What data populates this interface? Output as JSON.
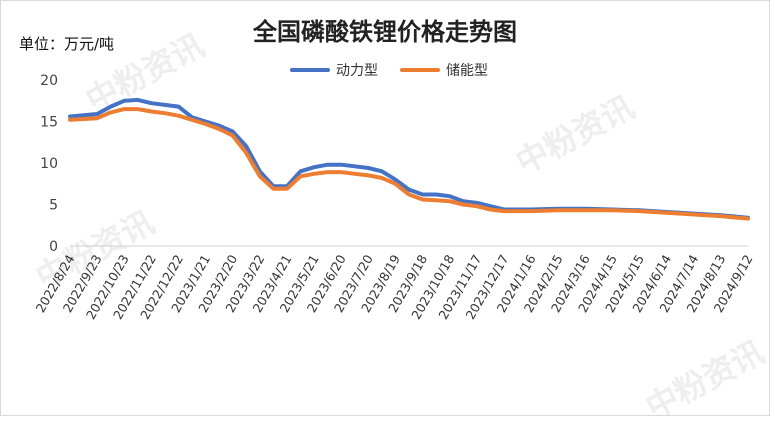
{
  "chart_data": {
    "type": "line",
    "title": "全国磷酸铁锂价格走势图",
    "unit_label": "单位：万元/吨",
    "ylim": [
      0,
      20
    ],
    "yticks": [
      0,
      5,
      10,
      15,
      20
    ],
    "x_tick_labels": [
      "2022/8/24",
      "2022/9/23",
      "2022/10/23",
      "2022/11/22",
      "2022/12/22",
      "2023/1/21",
      "2023/2/20",
      "2023/3/22",
      "2023/4/21",
      "2023/5/21",
      "2023/6/20",
      "2023/7/20",
      "2023/8/19",
      "2023/9/18",
      "2023/10/18",
      "2023/11/17",
      "2023/12/17",
      "2024/1/16",
      "2024/2/15",
      "2024/3/16",
      "2024/4/15",
      "2024/5/15",
      "2024/6/14",
      "2024/7/14",
      "2024/8/13",
      "2024/9/12"
    ],
    "x": [
      "2022/8/24",
      "2022/9/23",
      "2022/10/8",
      "2022/10/23",
      "2022/11/7",
      "2022/11/22",
      "2022/12/7",
      "2022/12/22",
      "2023/1/6",
      "2023/1/21",
      "2023/2/5",
      "2023/2/20",
      "2023/3/7",
      "2023/3/22",
      "2023/4/6",
      "2023/4/21",
      "2023/5/6",
      "2023/5/21",
      "2023/6/5",
      "2023/6/20",
      "2023/7/5",
      "2023/7/20",
      "2023/8/4",
      "2023/8/19",
      "2023/9/3",
      "2023/9/18",
      "2023/10/3",
      "2023/10/18",
      "2023/11/2",
      "2023/11/17",
      "2023/12/2",
      "2023/12/17",
      "2024/1/16",
      "2024/2/15",
      "2024/3/16",
      "2024/4/15",
      "2024/5/15",
      "2024/6/14",
      "2024/7/14",
      "2024/8/13",
      "2024/9/12"
    ],
    "series": [
      {
        "name": "动力型",
        "color": "#4472C4",
        "values": [
          15.6,
          15.9,
          16.8,
          17.5,
          17.6,
          17.2,
          17.0,
          16.8,
          15.5,
          15.0,
          14.5,
          13.8,
          12.0,
          9.0,
          7.2,
          7.2,
          9.0,
          9.5,
          9.8,
          9.8,
          9.6,
          9.4,
          9.0,
          8.0,
          6.8,
          6.2,
          6.2,
          6.0,
          5.4,
          5.2,
          4.8,
          4.4,
          4.4,
          4.5,
          4.5,
          4.4,
          4.3,
          4.1,
          3.9,
          3.7,
          3.4
        ]
      },
      {
        "name": "储能型",
        "color": "#ED7D31",
        "values": [
          15.2,
          15.4,
          16.1,
          16.5,
          16.5,
          16.2,
          16.0,
          15.7,
          15.2,
          14.7,
          14.1,
          13.3,
          11.2,
          8.4,
          6.9,
          6.9,
          8.4,
          8.7,
          8.9,
          8.9,
          8.7,
          8.5,
          8.2,
          7.5,
          6.2,
          5.6,
          5.5,
          5.4,
          5.0,
          4.8,
          4.4,
          4.2,
          4.2,
          4.3,
          4.3,
          4.3,
          4.2,
          4.0,
          3.8,
          3.6,
          3.3
        ]
      }
    ],
    "legend_position": "top-center",
    "grid": false
  },
  "watermark_text": "中粉资讯"
}
